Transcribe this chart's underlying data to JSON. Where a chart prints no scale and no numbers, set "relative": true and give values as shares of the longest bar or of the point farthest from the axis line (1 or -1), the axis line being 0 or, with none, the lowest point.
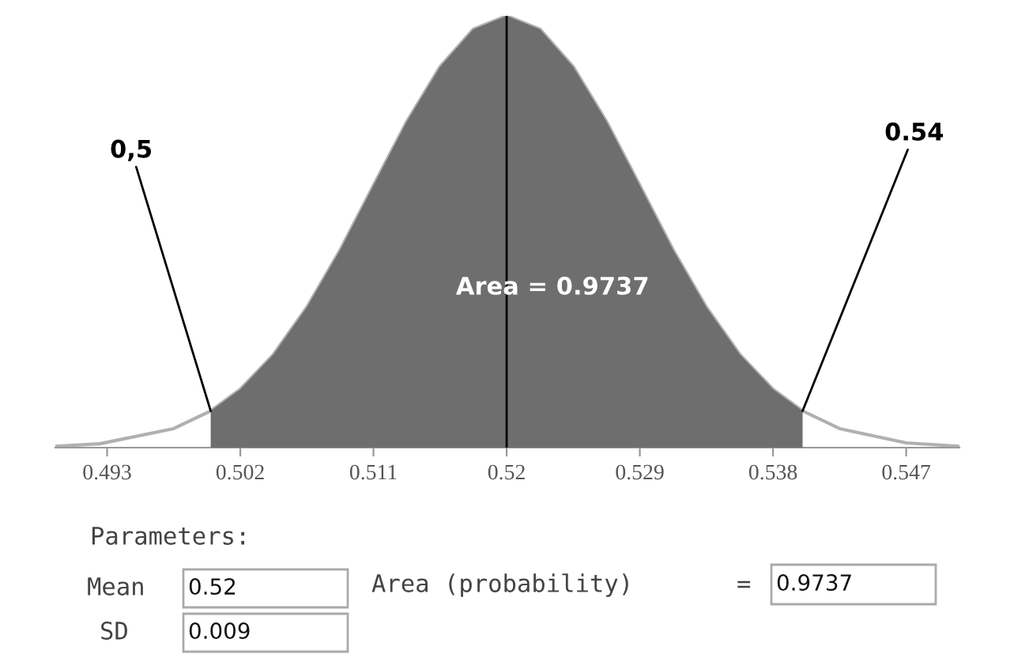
{
  "chart_data": {
    "type": "area",
    "relative": true,
    "xlim": [
      0.4895,
      0.5506
    ],
    "xticks": [
      0.493,
      0.502,
      0.511,
      0.52,
      0.529,
      0.538,
      0.547
    ],
    "series": [
      {
        "type": "line",
        "color": "#b0b0b0",
        "x": [
          0.4895,
          0.4925,
          0.4975,
          0.5,
          0.502,
          0.50425,
          0.5065,
          0.50875,
          0.511,
          0.51325,
          0.5155,
          0.51775,
          0.52,
          0.52225,
          0.5245,
          0.52675,
          0.529,
          0.53125,
          0.5335,
          0.53575,
          0.538,
          0.54,
          0.5425,
          0.547,
          0.5506
        ],
        "values": [
          0.003,
          0.009,
          0.044,
          0.085,
          0.135,
          0.216,
          0.325,
          0.458,
          0.607,
          0.755,
          0.882,
          0.969,
          1,
          0.969,
          0.882,
          0.755,
          0.607,
          0.458,
          0.325,
          0.216,
          0.135,
          0.085,
          0.044,
          0.011,
          0.003
        ]
      },
      {
        "color": "#6e6e6e",
        "x": [
          0.5,
          0.502,
          0.50425,
          0.5065,
          0.50875,
          0.511,
          0.51325,
          0.5155,
          0.51775,
          0.52,
          0.52225,
          0.5245,
          0.52675,
          0.529,
          0.53125,
          0.5335,
          0.53575,
          0.538,
          0.54
        ],
        "values": [
          0.085,
          0.135,
          0.216,
          0.325,
          0.458,
          0.607,
          0.755,
          0.882,
          0.969,
          1,
          0.969,
          0.882,
          0.755,
          0.607,
          0.458,
          0.325,
          0.216,
          0.135,
          0.085
        ]
      }
    ],
    "ref_lines": [
      {
        "axis": "x",
        "value": 0.52,
        "color": "#000000"
      }
    ],
    "annotations": [
      {
        "text": "0,5",
        "x": 0.5,
        "y": 0.085
      },
      {
        "text": "0.54",
        "x": 0.54,
        "y": 0.085
      },
      "Area = 0.9737",
      "Parameters:",
      "Mean",
      "0.52",
      "SD",
      "0.009",
      "Area (probability)",
      "=",
      "0.9737"
    ],
    "grid": false
  }
}
